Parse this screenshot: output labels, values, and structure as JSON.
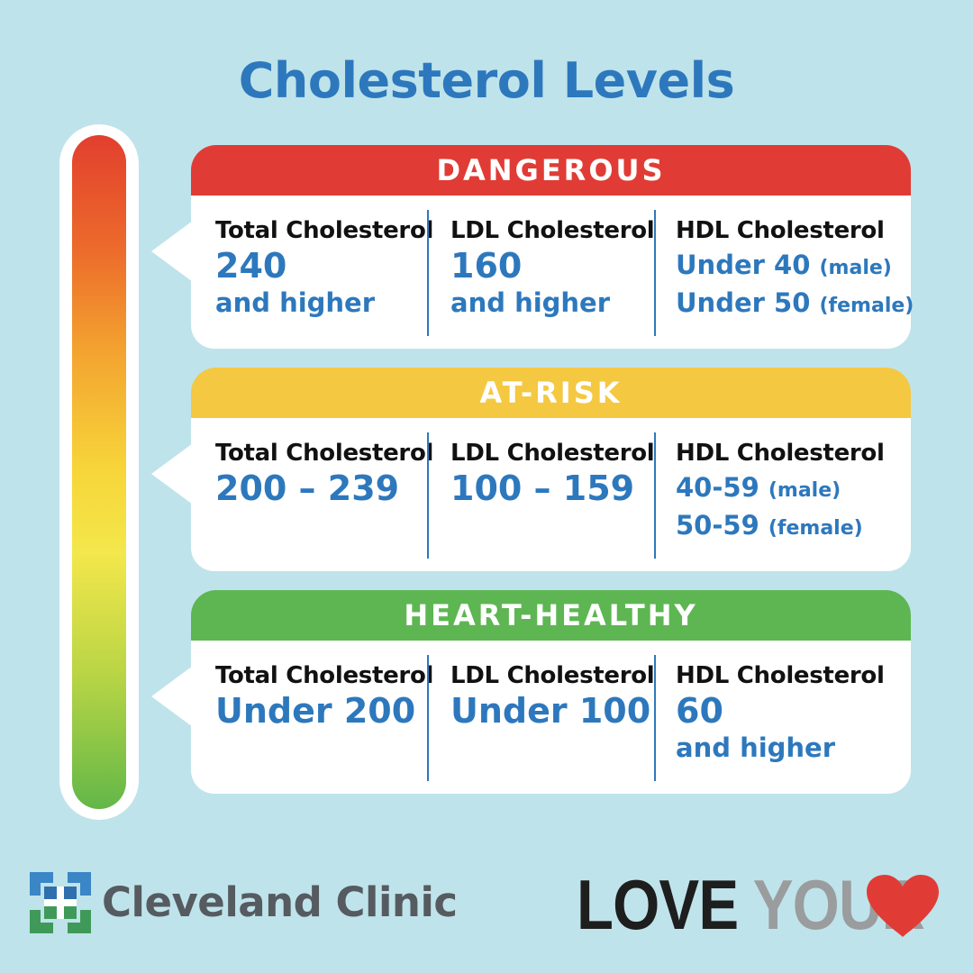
{
  "title": "Cholesterol Levels",
  "colors": {
    "background": "#bfe3ea",
    "title_blue": "#2d78bd",
    "dangerous": "#e03c35",
    "at_risk": "#f5c842",
    "heart_healthy": "#5db652"
  },
  "panels": [
    {
      "label": "DANGEROUS",
      "total": {
        "head": "Total Cholesterol",
        "value": "240",
        "note": "and higher"
      },
      "ldl": {
        "head": "LDL Cholesterol",
        "value": "160",
        "note": "and higher"
      },
      "hdl": {
        "head": "HDL Cholesterol",
        "line1": "Under 40",
        "line1_tag": "(male)",
        "line2": "Under 50",
        "line2_tag": "(female)"
      }
    },
    {
      "label": "AT-RISK",
      "total": {
        "head": "Total Cholesterol",
        "value": "200 – 239"
      },
      "ldl": {
        "head": "LDL Cholesterol",
        "value": "100 – 159"
      },
      "hdl": {
        "head": "HDL Cholesterol",
        "line1": "40-59",
        "line1_tag": "(male)",
        "line2": "50-59",
        "line2_tag": "(female)"
      }
    },
    {
      "label": "HEART-HEALTHY",
      "total": {
        "head": "Total Cholesterol",
        "value": "Under 200"
      },
      "ldl": {
        "head": "LDL Cholesterol",
        "value": "Under 100"
      },
      "hdl": {
        "head": "HDL Cholesterol",
        "value": "60",
        "note": "and higher"
      }
    }
  ],
  "footer": {
    "clinic_name": "Cleveland Clinic",
    "slogan_word1": "LOVE",
    "slogan_word2": "YOUR",
    "heart_icon": "heart-icon"
  }
}
